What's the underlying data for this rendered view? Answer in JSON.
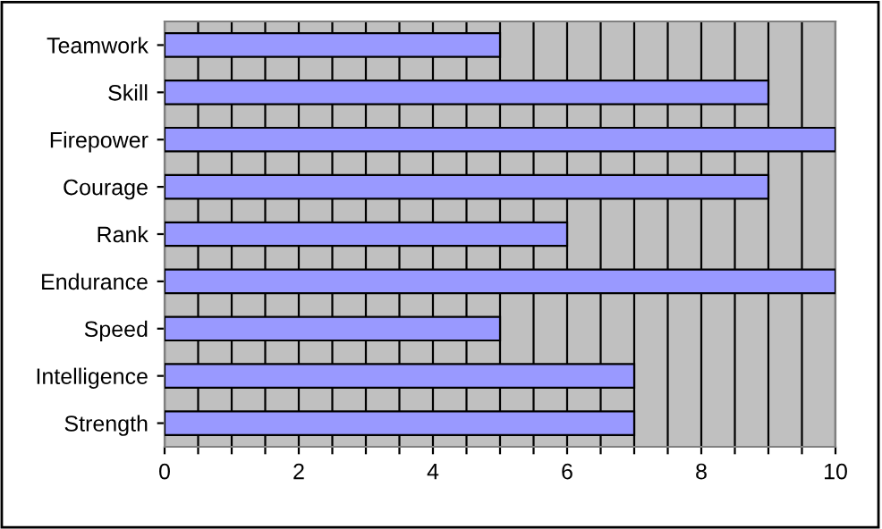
{
  "chart_data": {
    "type": "bar",
    "orientation": "horizontal",
    "categories": [
      "Teamwork",
      "Skill",
      "Firepower",
      "Courage",
      "Rank",
      "Endurance",
      "Speed",
      "Intelligence",
      "Strength"
    ],
    "values": [
      5,
      9,
      10,
      9,
      6,
      10,
      5,
      7,
      7
    ],
    "color": "#9999ff",
    "xlim": [
      0,
      10
    ],
    "xticks": [
      0,
      {
        "value": 0.5,
        "label": null
      },
      {
        "value": 1,
        "label": null
      },
      {
        "value": 1.5,
        "label": null
      },
      2,
      {
        "value": 2.5,
        "label": null
      },
      {
        "value": 3,
        "label": null
      },
      {
        "value": 3.5,
        "label": null
      },
      4,
      {
        "value": 4.5,
        "label": null
      },
      {
        "value": 5,
        "label": null
      },
      {
        "value": 5.5,
        "label": null
      },
      6,
      {
        "value": 6.5,
        "label": null
      },
      {
        "value": 7,
        "label": null
      },
      {
        "value": 7.5,
        "label": null
      },
      8,
      {
        "value": 8.5,
        "label": null
      },
      {
        "value": 9,
        "label": null
      },
      {
        "value": 9.5,
        "label": null
      },
      10
    ],
    "grid": "x"
  }
}
